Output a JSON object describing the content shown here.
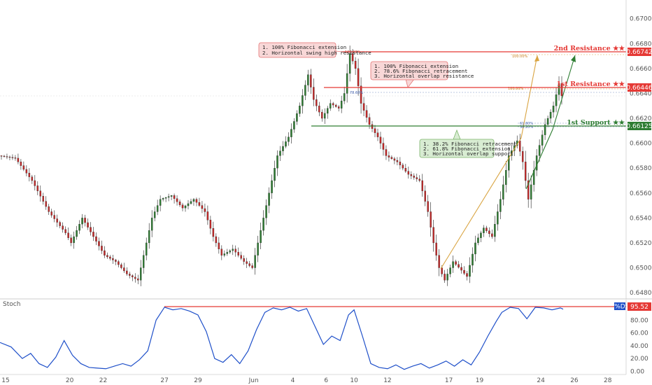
{
  "chart_data": {
    "type": "candlestick",
    "price_axis": {
      "range": [
        0.6475,
        0.6715
      ],
      "ticks": [
        "0.64800",
        "0.65000",
        "0.65200",
        "0.65400",
        "0.65600",
        "0.65800",
        "0.66000",
        "0.66200",
        "0.66400",
        "0.66600",
        "0.66800",
        "0.67000"
      ],
      "tick_values": [
        0.648,
        0.65,
        0.652,
        0.654,
        0.656,
        0.658,
        0.66,
        0.662,
        0.664,
        0.666,
        0.668,
        0.67
      ]
    },
    "time_axis": {
      "labels": [
        {
          "text": "15",
          "index": 2
        },
        {
          "text": "20",
          "index": 25
        },
        {
          "text": "22",
          "index": 37
        },
        {
          "text": "27",
          "index": 59
        },
        {
          "text": "29",
          "index": 71
        },
        {
          "text": "Jun",
          "index": 91
        },
        {
          "text": "4",
          "index": 105
        },
        {
          "text": "6",
          "index": 117
        },
        {
          "text": "10",
          "index": 127
        },
        {
          "text": "12",
          "index": 139
        },
        {
          "text": "17",
          "index": 161
        },
        {
          "text": "19",
          "index": 172
        },
        {
          "text": "24",
          "index": 194
        },
        {
          "text": "26",
          "index": 206
        },
        {
          "text": "28",
          "index": 218
        }
      ]
    },
    "price_path": [
      [
        0,
        0.659
      ],
      [
        6,
        0.6588
      ],
      [
        12,
        0.657
      ],
      [
        18,
        0.6545
      ],
      [
        24,
        0.6528
      ],
      [
        26,
        0.652
      ],
      [
        30,
        0.654
      ],
      [
        34,
        0.6525
      ],
      [
        38,
        0.651
      ],
      [
        42,
        0.6505
      ],
      [
        46,
        0.6495
      ],
      [
        50,
        0.649
      ],
      [
        52,
        0.651
      ],
      [
        55,
        0.654
      ],
      [
        58,
        0.6555
      ],
      [
        62,
        0.6558
      ],
      [
        66,
        0.6548
      ],
      [
        70,
        0.6555
      ],
      [
        74,
        0.6545
      ],
      [
        77,
        0.6525
      ],
      [
        80,
        0.651
      ],
      [
        84,
        0.6515
      ],
      [
        88,
        0.6505
      ],
      [
        91,
        0.65
      ],
      [
        94,
        0.653
      ],
      [
        97,
        0.656
      ],
      [
        100,
        0.659
      ],
      [
        104,
        0.6605
      ],
      [
        108,
        0.663
      ],
      [
        111,
        0.6655
      ],
      [
        113,
        0.6635
      ],
      [
        116,
        0.662
      ],
      [
        119,
        0.6632
      ],
      [
        122,
        0.6628
      ],
      [
        124,
        0.664
      ],
      [
        126,
        0.6672
      ],
      [
        128,
        0.666
      ],
      [
        130,
        0.6632
      ],
      [
        133,
        0.6615
      ],
      [
        136,
        0.6605
      ],
      [
        139,
        0.659
      ],
      [
        143,
        0.6585
      ],
      [
        147,
        0.6575
      ],
      [
        151,
        0.657
      ],
      [
        154,
        0.6545
      ],
      [
        156,
        0.652
      ],
      [
        158,
        0.65
      ],
      [
        160,
        0.649
      ],
      [
        163,
        0.6505
      ],
      [
        166,
        0.6498
      ],
      [
        168,
        0.6493
      ],
      [
        171,
        0.652
      ],
      [
        174,
        0.6532
      ],
      [
        177,
        0.6525
      ],
      [
        180,
        0.6555
      ],
      [
        183,
        0.659
      ],
      [
        186,
        0.6602
      ],
      [
        188,
        0.6585
      ],
      [
        190,
        0.6555
      ],
      [
        193,
        0.659
      ],
      [
        196,
        0.6615
      ],
      [
        199,
        0.663
      ],
      [
        201,
        0.6648
      ],
      [
        202,
        0.6638
      ]
    ],
    "stoch_axis": {
      "range": [
        -5,
        112
      ],
      "ticks": [
        "0.00",
        "20.00",
        "40.00",
        "60.00",
        "80.00",
        "100.00"
      ],
      "tick_values": [
        0,
        20,
        40,
        60,
        80,
        100
      ]
    },
    "stoch_path": [
      [
        0,
        45
      ],
      [
        4,
        38
      ],
      [
        8,
        20
      ],
      [
        11,
        28
      ],
      [
        14,
        12
      ],
      [
        17,
        6
      ],
      [
        20,
        22
      ],
      [
        23,
        48
      ],
      [
        26,
        25
      ],
      [
        29,
        12
      ],
      [
        32,
        6
      ],
      [
        35,
        5
      ],
      [
        38,
        4
      ],
      [
        41,
        8
      ],
      [
        44,
        12
      ],
      [
        47,
        8
      ],
      [
        50,
        18
      ],
      [
        53,
        32
      ],
      [
        56,
        80
      ],
      [
        59,
        100
      ],
      [
        62,
        96
      ],
      [
        65,
        98
      ],
      [
        68,
        94
      ],
      [
        71,
        88
      ],
      [
        74,
        62
      ],
      [
        77,
        20
      ],
      [
        80,
        14
      ],
      [
        83,
        26
      ],
      [
        86,
        12
      ],
      [
        89,
        32
      ],
      [
        92,
        65
      ],
      [
        95,
        92
      ],
      [
        98,
        99
      ],
      [
        101,
        96
      ],
      [
        104,
        100
      ],
      [
        107,
        94
      ],
      [
        110,
        98
      ],
      [
        113,
        70
      ],
      [
        116,
        42
      ],
      [
        119,
        55
      ],
      [
        122,
        48
      ],
      [
        125,
        88
      ],
      [
        127,
        96
      ],
      [
        130,
        55
      ],
      [
        133,
        12
      ],
      [
        136,
        6
      ],
      [
        139,
        4
      ],
      [
        142,
        10
      ],
      [
        145,
        3
      ],
      [
        148,
        8
      ],
      [
        151,
        12
      ],
      [
        154,
        5
      ],
      [
        157,
        10
      ],
      [
        160,
        16
      ],
      [
        163,
        8
      ],
      [
        166,
        18
      ],
      [
        169,
        10
      ],
      [
        172,
        30
      ],
      [
        175,
        55
      ],
      [
        178,
        78
      ],
      [
        180,
        92
      ],
      [
        183,
        100
      ],
      [
        186,
        98
      ],
      [
        189,
        82
      ],
      [
        192,
        100
      ],
      [
        195,
        99
      ],
      [
        198,
        96
      ],
      [
        201,
        99
      ],
      [
        202,
        97
      ]
    ],
    "stoch": {
      "label": "Stoch",
      "badge": "%D",
      "value": "95.52"
    },
    "levels": [
      {
        "label": "2nd Resistance ★★",
        "price": 0.66742,
        "tag": "0.66742",
        "color": "#e53935"
      },
      {
        "label": "1st Resistance ★★",
        "price": 0.66446,
        "tag": "0.66446",
        "color": "#e53935"
      },
      {
        "label": "1st Support ★★",
        "price": 0.66125,
        "tag": "0.66125",
        "color": "#2e7d32"
      }
    ],
    "annotations": [
      {
        "lines": [
          "1. 100% Fibonacci extension",
          "2. Horizontal swing high resistance"
        ],
        "color": "red"
      },
      {
        "lines": [
          "1. 100% Fibonacci extension",
          "2. 78.6% Fibonacci retracement",
          "3. Horizontal overlap resistance"
        ],
        "color": "red"
      },
      {
        "lines": [
          "1. 38.2% Fibonacci retracement",
          "2. 61.8% Fibonacci extension",
          "3. Horizontal overlap support"
        ],
        "color": "green"
      }
    ],
    "fib_marks": [
      "100.00%",
      "78.60%",
      "100.00%",
      "100.00%",
      "61.80%",
      "38.20%"
    ]
  }
}
